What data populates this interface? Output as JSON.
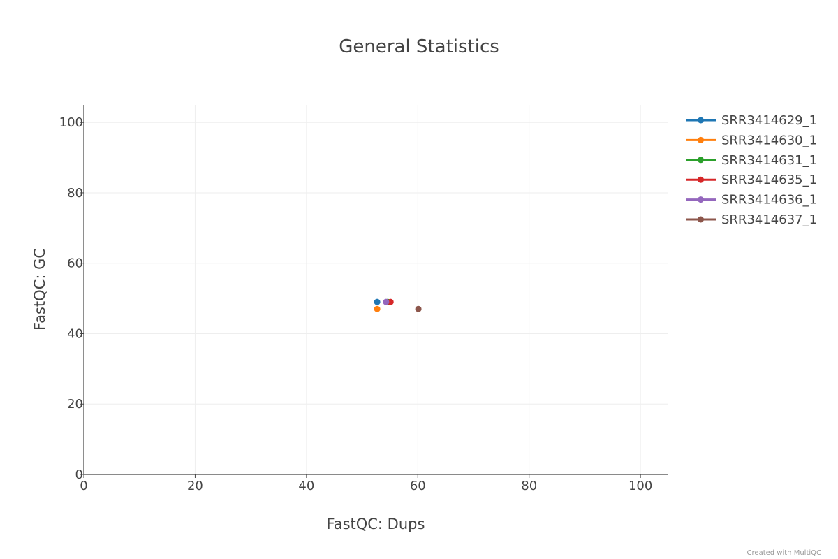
{
  "chart_data": {
    "type": "scatter",
    "title": "General Statistics",
    "xlabel": "FastQC: Dups",
    "ylabel": "FastQC: GC",
    "xlim": [
      0,
      105
    ],
    "ylim": [
      0,
      105
    ],
    "xticks": [
      0,
      20,
      40,
      60,
      80,
      100
    ],
    "yticks": [
      0,
      20,
      40,
      60,
      80,
      100
    ],
    "grid": true,
    "legend_position": "right",
    "series": [
      {
        "name": "SRR3414629_1",
        "color": "#1f77b4",
        "points": [
          {
            "x": 52.7,
            "y": 49
          }
        ]
      },
      {
        "name": "SRR3414630_1",
        "color": "#ff7f0e",
        "points": [
          {
            "x": 52.7,
            "y": 47
          }
        ]
      },
      {
        "name": "SRR3414631_1",
        "color": "#2ca02c",
        "points": [
          {
            "x": 54.6,
            "y": 49
          }
        ]
      },
      {
        "name": "SRR3414635_1",
        "color": "#d62728",
        "points": [
          {
            "x": 55.1,
            "y": 49
          }
        ]
      },
      {
        "name": "SRR3414636_1",
        "color": "#9467bd",
        "points": [
          {
            "x": 54.3,
            "y": 49
          }
        ]
      },
      {
        "name": "SRR3414637_1",
        "color": "#8c564b",
        "points": [
          {
            "x": 60.1,
            "y": 47
          }
        ]
      }
    ]
  },
  "credit": "Created with MultiQC"
}
